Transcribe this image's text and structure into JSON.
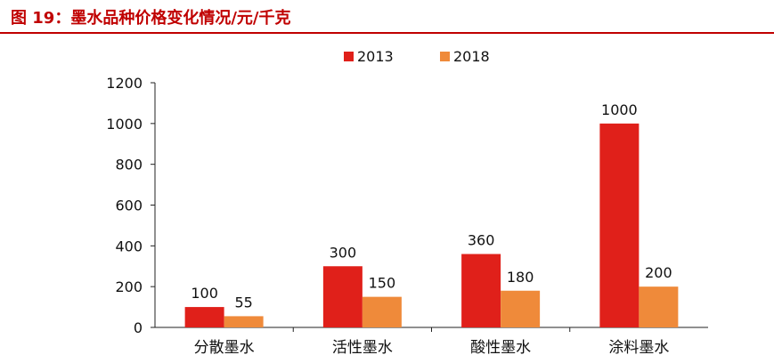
{
  "figure": {
    "title": "图 19：墨水品种价格变化情况/元/千克"
  },
  "colors": {
    "title": "#c00000",
    "series_2013": "#e0201a",
    "series_2018": "#ef8a3a",
    "axis": "#222222"
  },
  "chart_data": {
    "type": "bar",
    "title": "",
    "xlabel": "",
    "ylabel": "",
    "categories": [
      "分散墨水",
      "活性墨水",
      "酸性墨水",
      "涂料墨水"
    ],
    "series": [
      {
        "name": "2013",
        "values": [
          100,
          300,
          360,
          1000
        ]
      },
      {
        "name": "2018",
        "values": [
          55,
          150,
          180,
          200
        ]
      }
    ],
    "ylim": [
      0,
      1200
    ],
    "yticks": [
      0,
      200,
      400,
      600,
      800,
      1000,
      1200
    ],
    "grid": false,
    "legend": "top-center",
    "data_labels": true
  }
}
